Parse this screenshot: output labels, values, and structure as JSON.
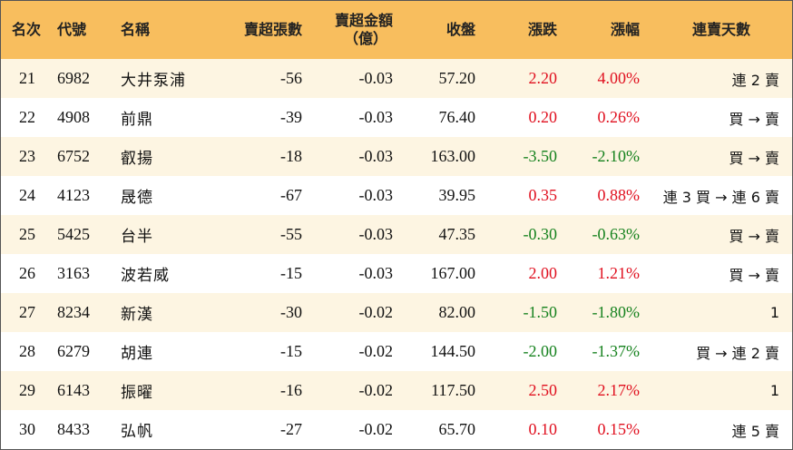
{
  "colors": {
    "header_bg": "#f8be5e",
    "odd_row_bg": "#fdf5e2",
    "up": "#e0101f",
    "down": "#16821e"
  },
  "headers": {
    "rank": "名次",
    "code": "代號",
    "name": "名稱",
    "sell_lots": "賣超張數",
    "sell_amount_line1": "賣超金額",
    "sell_amount_line2": "（億）",
    "close": "收盤",
    "change": "漲跌",
    "change_pct": "漲幅",
    "streak": "連賣天數"
  },
  "rows": [
    {
      "rank": "21",
      "code": "6982",
      "name": "大井泵浦",
      "sell_lots": "-56",
      "sell_amount": "-0.03",
      "close": "57.20",
      "change": "2.20",
      "change_pct": "4.00%",
      "dir": "up",
      "streak": "連 2 賣"
    },
    {
      "rank": "22",
      "code": "4908",
      "name": "前鼎",
      "sell_lots": "-39",
      "sell_amount": "-0.03",
      "close": "76.40",
      "change": "0.20",
      "change_pct": "0.26%",
      "dir": "up",
      "streak": "買 → 賣"
    },
    {
      "rank": "23",
      "code": "6752",
      "name": "叡揚",
      "sell_lots": "-18",
      "sell_amount": "-0.03",
      "close": "163.00",
      "change": "-3.50",
      "change_pct": "-2.10%",
      "dir": "down",
      "streak": "買 → 賣"
    },
    {
      "rank": "24",
      "code": "4123",
      "name": "晟德",
      "sell_lots": "-67",
      "sell_amount": "-0.03",
      "close": "39.95",
      "change": "0.35",
      "change_pct": "0.88%",
      "dir": "up",
      "streak": "連 3 買 → 連 6 賣"
    },
    {
      "rank": "25",
      "code": "5425",
      "name": "台半",
      "sell_lots": "-55",
      "sell_amount": "-0.03",
      "close": "47.35",
      "change": "-0.30",
      "change_pct": "-0.63%",
      "dir": "down",
      "streak": "買 → 賣"
    },
    {
      "rank": "26",
      "code": "3163",
      "name": "波若威",
      "sell_lots": "-15",
      "sell_amount": "-0.03",
      "close": "167.00",
      "change": "2.00",
      "change_pct": "1.21%",
      "dir": "up",
      "streak": "買 → 賣"
    },
    {
      "rank": "27",
      "code": "8234",
      "name": "新漢",
      "sell_lots": "-30",
      "sell_amount": "-0.02",
      "close": "82.00",
      "change": "-1.50",
      "change_pct": "-1.80%",
      "dir": "down",
      "streak": "1"
    },
    {
      "rank": "28",
      "code": "6279",
      "name": "胡連",
      "sell_lots": "-15",
      "sell_amount": "-0.02",
      "close": "144.50",
      "change": "-2.00",
      "change_pct": "-1.37%",
      "dir": "down",
      "streak": "買 → 連 2 賣"
    },
    {
      "rank": "29",
      "code": "6143",
      "name": "振曜",
      "sell_lots": "-16",
      "sell_amount": "-0.02",
      "close": "117.50",
      "change": "2.50",
      "change_pct": "2.17%",
      "dir": "up",
      "streak": "1"
    },
    {
      "rank": "30",
      "code": "8433",
      "name": "弘帆",
      "sell_lots": "-27",
      "sell_amount": "-0.02",
      "close": "65.70",
      "change": "0.10",
      "change_pct": "0.15%",
      "dir": "up",
      "streak": "連 5 賣"
    }
  ]
}
